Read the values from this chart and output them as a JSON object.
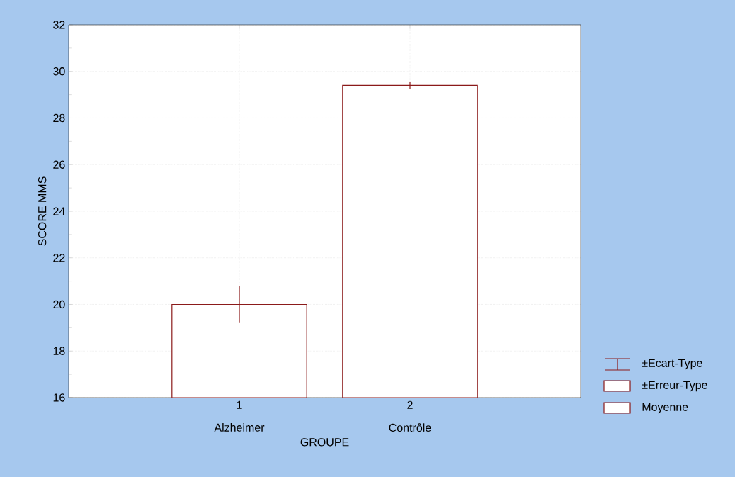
{
  "chart_data": {
    "type": "bar",
    "xlabel": "GROUPE",
    "ylabel": "SCORE MMS",
    "categories": [
      "Alzheimer",
      "Contrôle"
    ],
    "series": [
      {
        "name": "Moyenne",
        "color": "#ffffff",
        "values": [
          20.0,
          29.4
        ],
        "errors": [
          0.8,
          0.15
        ]
      }
    ],
    "annotations": [
      "1",
      "2",
      "±Ecart-Type",
      "±Erreur-Type"
    ],
    "ylim": [
      16,
      32
    ],
    "yticks": [
      16,
      18,
      20,
      22,
      24,
      26,
      28,
      30,
      32
    ],
    "grid": true,
    "legend": "right"
  }
}
